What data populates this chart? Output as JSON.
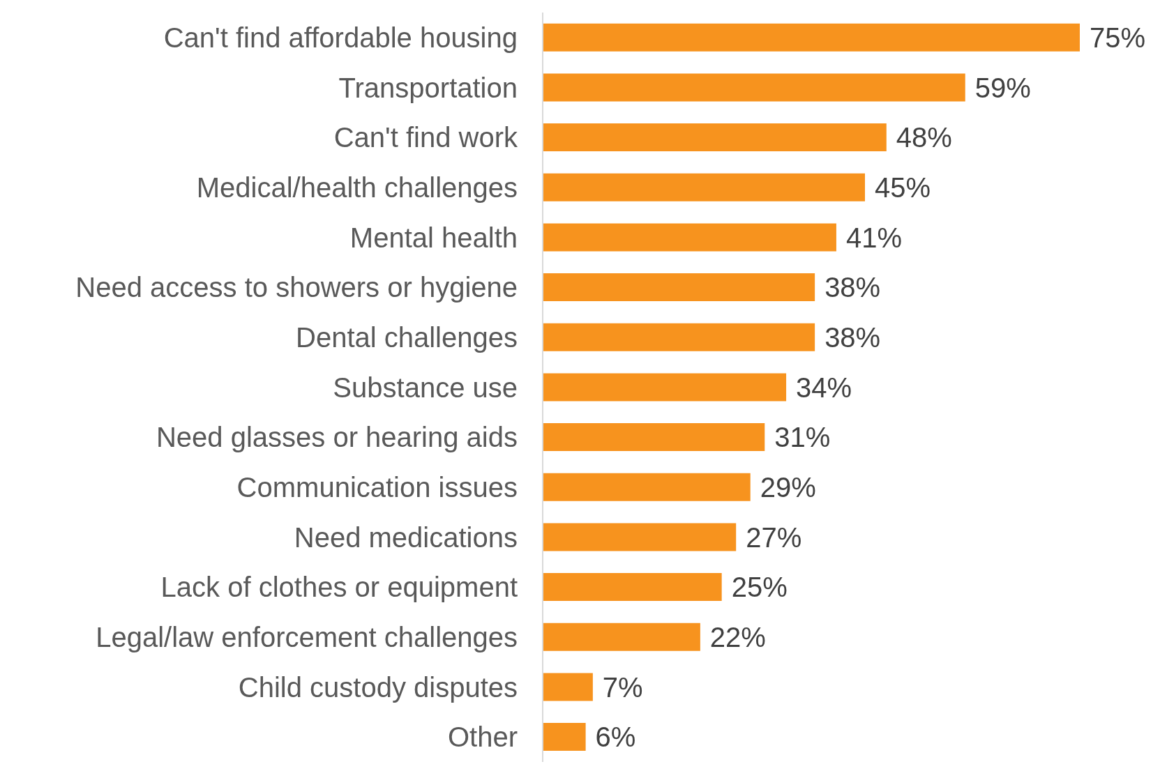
{
  "chart_data": {
    "type": "bar",
    "orientation": "horizontal",
    "categories": [
      "Can't find affordable housing",
      "Transportation",
      "Can't find work",
      "Medical/health challenges",
      "Mental health",
      "Need access to showers or hygiene",
      "Dental challenges",
      "Substance use",
      "Need glasses or hearing aids",
      "Communication issues",
      "Need medications",
      "Lack of clothes or equipment",
      "Legal/law enforcement challenges",
      "Child custody disputes",
      "Other"
    ],
    "values": [
      75,
      59,
      48,
      45,
      41,
      38,
      38,
      34,
      31,
      29,
      27,
      25,
      22,
      7,
      6
    ],
    "value_labels": [
      "75%",
      "59%",
      "48%",
      "45%",
      "41%",
      "38%",
      "38%",
      "34%",
      "31%",
      "29%",
      "27%",
      "25%",
      "22%",
      "7%",
      "6%"
    ],
    "color": "#f7931e",
    "grid": false,
    "legend": false
  }
}
